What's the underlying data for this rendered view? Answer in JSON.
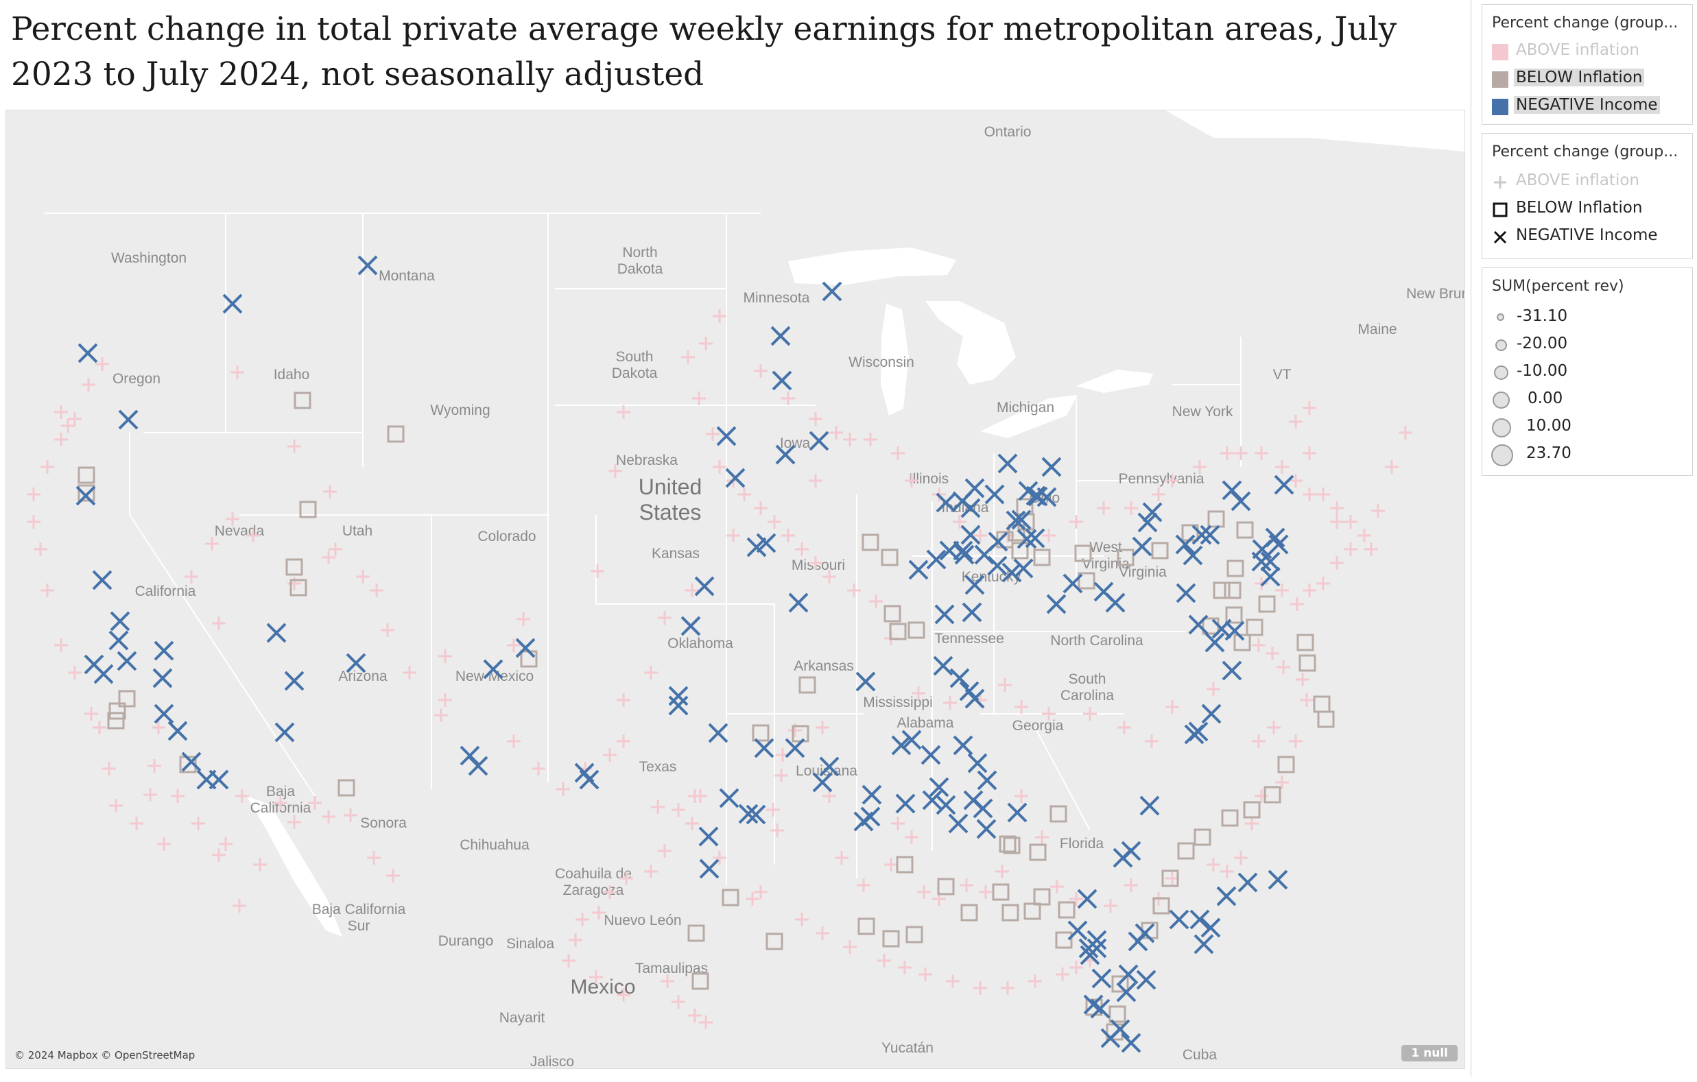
{
  "title": "Percent change in total private average weekly earnings for metropolitan areas, July 2023 to July 2024, not seasonally adjusted",
  "map": {
    "attribution": "© 2024 Mapbox © OpenStreetMap",
    "null_badge": "1 null",
    "colors": {
      "above": "#f3c9cf",
      "below": "#b7aaa5",
      "negative": "#4472a9",
      "land": "#ececec",
      "water": "#ffffff",
      "border": "#ffffff"
    },
    "places": {
      "countries": [
        "United States",
        "Mexico"
      ],
      "states": [
        "Washington",
        "Oregon",
        "Idaho",
        "Montana",
        "Wyoming",
        "Nevada",
        "Utah",
        "California",
        "Arizona",
        "Colorado",
        "New Mexico",
        "North Dakota",
        "South Dakota",
        "Nebraska",
        "Kansas",
        "Oklahoma",
        "Texas",
        "Minnesota",
        "Iowa",
        "Missouri",
        "Arkansas",
        "Louisiana",
        "Wisconsin",
        "Illinois",
        "Michigan",
        "Indiana",
        "Ohio",
        "Kentucky",
        "Tennessee",
        "Mississippi",
        "Alabama",
        "Georgia",
        "Florida",
        "South Carolina",
        "North Carolina",
        "Virginia",
        "West Virginia",
        "Pennsylvania",
        "New York",
        "Maine",
        "VT"
      ],
      "other": [
        "Ontario",
        "New Brunsw",
        "Baja California",
        "Baja California Sur",
        "Sonora",
        "Chihuahua",
        "Coahuila de Zaragoza",
        "Nuevo León",
        "Durango",
        "Sinaloa",
        "Tamaulipas",
        "Nayarit",
        "Jalisco",
        "Yucatán",
        "Cuba"
      ]
    }
  },
  "legends": {
    "color_legend": {
      "title": "Percent change (group...",
      "items": [
        {
          "label": "ABOVE inflation",
          "color": "#f3c9cf",
          "muted": true
        },
        {
          "label": "BELOW Inflation",
          "color": "#b7aaa5",
          "muted": false
        },
        {
          "label": "NEGATIVE Income",
          "color": "#4472a9",
          "muted": false
        }
      ]
    },
    "shape_legend": {
      "title": "Percent change (group...",
      "items": [
        {
          "label": "ABOVE inflation",
          "shape": "plus",
          "muted": true
        },
        {
          "label": "BELOW Inflation",
          "shape": "square",
          "muted": false
        },
        {
          "label": "NEGATIVE Income",
          "shape": "cross",
          "muted": false
        }
      ]
    },
    "size_legend": {
      "title": "SUM(percent rev)",
      "items": [
        "-31.10",
        "-20.00",
        "-10.00",
        "0.00",
        "10.00",
        "23.70"
      ]
    }
  }
}
